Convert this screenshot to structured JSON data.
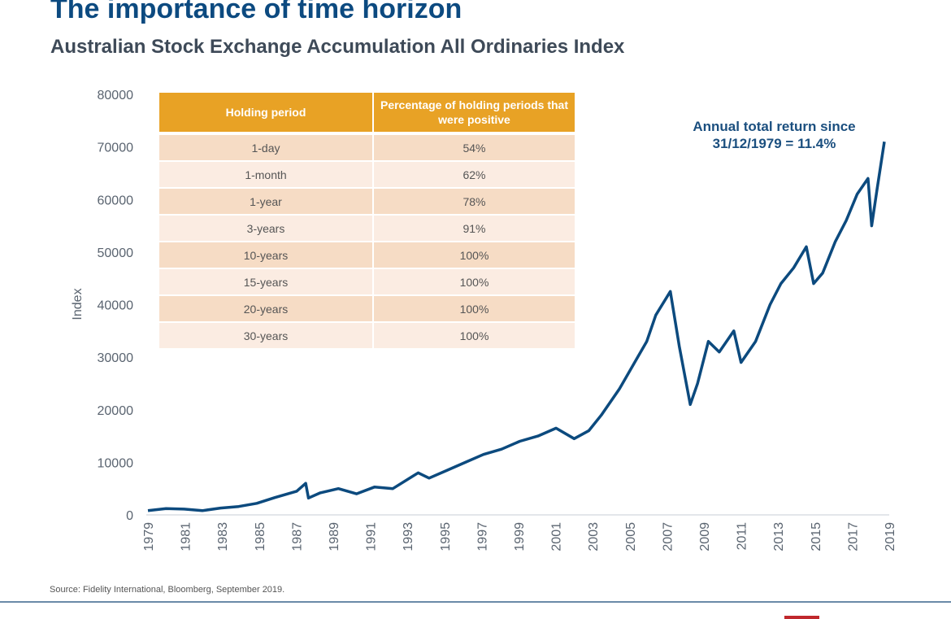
{
  "title": "The importance of time horizon",
  "subtitle": "Australian Stock Exchange Accumulation All Ordinaries Index",
  "annotation": {
    "line1": "Annual total return since",
    "line2": "31/12/1979 = 11.4%"
  },
  "table": {
    "headers": [
      "Holding period",
      "Percentage of holding periods that were positive"
    ],
    "rows": [
      [
        "1-day",
        "54%"
      ],
      [
        "1-month",
        "62%"
      ],
      [
        "1-year",
        "78%"
      ],
      [
        "3-years",
        "91%"
      ],
      [
        "10-years",
        "100%"
      ],
      [
        "15-years",
        "100%"
      ],
      [
        "20-years",
        "100%"
      ],
      [
        "30-years",
        "100%"
      ]
    ]
  },
  "source": "Source: Fidelity International, Bloomberg, September 2019.",
  "colors": {
    "line": "#0c4a7e",
    "header": "#e8a225",
    "row_odd": "#f6dcc5",
    "row_even": "#fbece2",
    "title": "#0c4a80",
    "accent_red": "#c0282d"
  },
  "chart_data": {
    "type": "line",
    "title": "",
    "xlabel": "",
    "ylabel": "Index",
    "ylim": [
      0,
      80000
    ],
    "xlim": [
      1979,
      2019
    ],
    "yticks": [
      0,
      10000,
      20000,
      30000,
      40000,
      50000,
      60000,
      70000,
      80000
    ],
    "xticks": [
      1979,
      1981,
      1983,
      1985,
      1987,
      1989,
      1991,
      1993,
      1995,
      1997,
      1999,
      2001,
      2003,
      2005,
      2007,
      2009,
      2011,
      2013,
      2015,
      2017,
      2019
    ],
    "grid": false,
    "legend": "none",
    "x": [
      1979.0,
      1980.0,
      1981.0,
      1982.0,
      1983.0,
      1984.0,
      1985.0,
      1986.0,
      1987.2,
      1987.7,
      1987.85,
      1988.5,
      1989.5,
      1990.5,
      1991.5,
      1992.5,
      1993.9,
      1994.5,
      1995.5,
      1996.5,
      1997.5,
      1998.5,
      1999.5,
      2000.5,
      2001.5,
      2002.5,
      2003.3,
      2004.0,
      2005.0,
      2006.0,
      2006.5,
      2007.0,
      2007.8,
      2008.3,
      2008.9,
      2009.3,
      2009.9,
      2010.5,
      2011.3,
      2011.7,
      2012.5,
      2013.3,
      2013.9,
      2014.6,
      2015.3,
      2015.7,
      2016.2,
      2016.9,
      2017.5,
      2018.1,
      2018.7,
      2018.9,
      2019.2,
      2019.6
    ],
    "y": [
      800,
      1200,
      1100,
      800,
      1300,
      1600,
      2200,
      3300,
      4500,
      6000,
      3200,
      4200,
      5000,
      4000,
      5300,
      5000,
      8000,
      7000,
      8500,
      10000,
      11500,
      12500,
      14000,
      15000,
      16500,
      14500,
      16000,
      19000,
      24000,
      30000,
      33000,
      38000,
      42500,
      32000,
      21000,
      25000,
      33000,
      31000,
      35000,
      29000,
      33000,
      40000,
      44000,
      47000,
      51000,
      44000,
      46000,
      52000,
      56000,
      61000,
      64000,
      55000,
      62000,
      71000
    ]
  }
}
